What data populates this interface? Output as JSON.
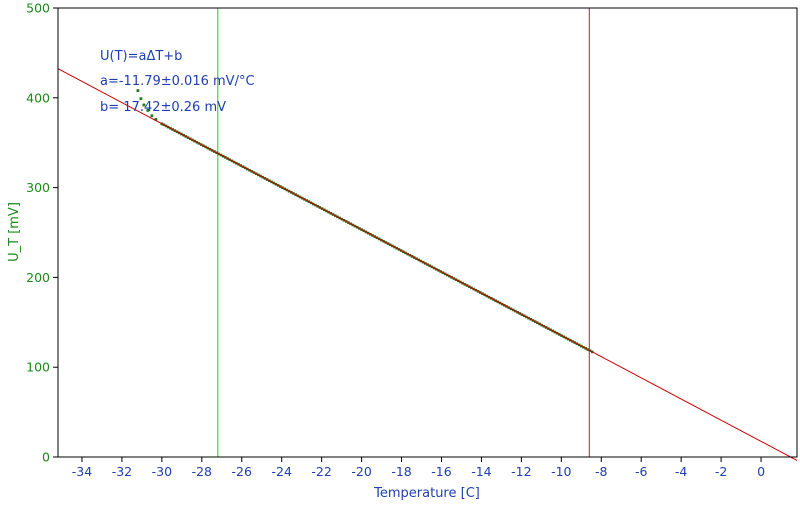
{
  "chart_data": {
    "type": "scatter",
    "title": "",
    "xlabel": "Temperature [C]",
    "ylabel": "U_T [mV]",
    "xlim": [
      -35.2,
      1.8
    ],
    "ylim": [
      0,
      500
    ],
    "x_ticks": [
      -34,
      -32,
      -30,
      -28,
      -26,
      -24,
      -22,
      -20,
      -18,
      -16,
      -14,
      -12,
      -10,
      -8,
      -6,
      -4,
      -2,
      0
    ],
    "y_ticks": [
      0,
      100,
      200,
      300,
      400,
      500
    ],
    "grid": false,
    "annotations": [
      "U(T)=aΔT+b",
      "a=-11.79±0.016 mV/°C",
      "b= 17.42±0.26 mV"
    ],
    "series": [
      {
        "kind": "measured",
        "color": "#1e7a1e",
        "x_range": [
          -31.2,
          -8.4
        ],
        "points": [
          [
            -31.2,
            408
          ],
          [
            -31.05,
            399
          ],
          [
            -30.9,
            392
          ],
          [
            -30.7,
            386
          ],
          [
            -30.5,
            380
          ],
          [
            -30.3,
            376
          ],
          [
            -30.0,
            371
          ]
        ]
      },
      {
        "kind": "fit",
        "color": "#cc0000",
        "slope": -11.79,
        "intercept": 17.42,
        "x_range": [
          -35.2,
          1.8
        ]
      }
    ],
    "vertical_lines": [
      {
        "x": -27.2,
        "color": "#22cc22"
      },
      {
        "x": -8.6,
        "color": "#dd1111"
      }
    ]
  }
}
